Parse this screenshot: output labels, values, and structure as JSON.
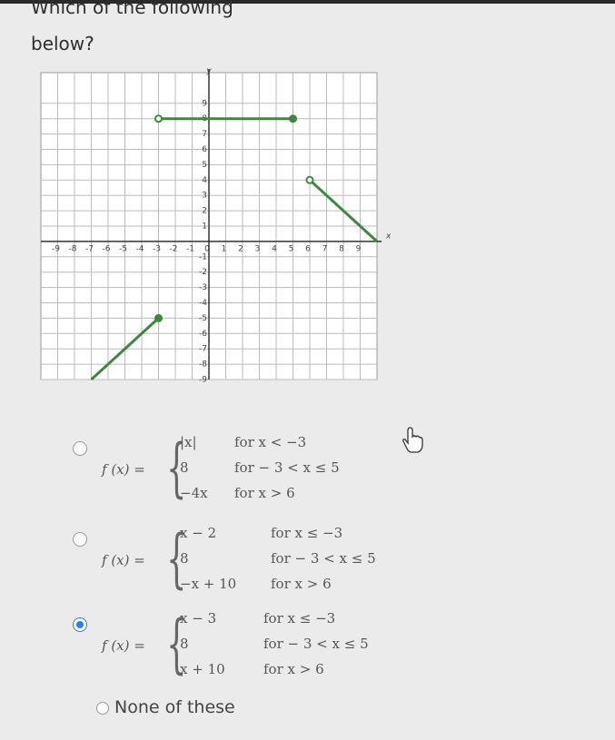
{
  "question": {
    "line1": "Which of the following",
    "line2": "below?"
  },
  "graph": {
    "x_label": "x",
    "y_label": "y",
    "xticks": [
      -9,
      -8,
      -7,
      -6,
      -5,
      -4,
      -3,
      -2,
      -1,
      0,
      1,
      2,
      3,
      4,
      5,
      6,
      7,
      8,
      9
    ],
    "yticks": [
      -9,
      -8,
      -7,
      -6,
      -5,
      -4,
      -3,
      -2,
      -1,
      1,
      2,
      3,
      4,
      5,
      6,
      7,
      8,
      9
    ],
    "xlim": [
      -10,
      10
    ],
    "ylim": [
      -9,
      11
    ]
  },
  "options": [
    {
      "fname": "f (x) =",
      "rows": [
        [
          "|x|",
          "for x < −3"
        ],
        [
          "8",
          "for − 3 < x ≤ 5"
        ],
        [
          "−4x",
          "for x > 6"
        ]
      ],
      "selected": false
    },
    {
      "fname": "f (x) =",
      "rows": [
        [
          "x − 2",
          "for x ≤ −3"
        ],
        [
          "8",
          "for − 3 < x ≤ 5"
        ],
        [
          "−x + 10",
          "for x > 6"
        ]
      ],
      "selected": false
    },
    {
      "fname": "f (x) =",
      "rows": [
        [
          "x − 3",
          "for x ≤ −3"
        ],
        [
          "8",
          "for − 3 < x ≤ 5"
        ],
        [
          "x + 10",
          "for x > 6"
        ]
      ],
      "selected": true
    }
  ],
  "none_option": "None of these"
}
